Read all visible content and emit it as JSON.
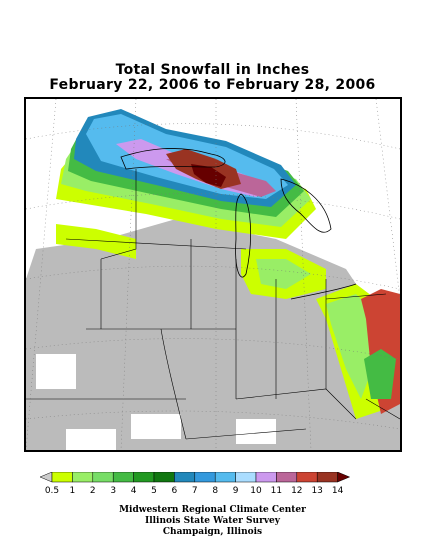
{
  "title": {
    "line1": "Total Snowfall in Inches",
    "line2": "February 22, 2006 to February 28, 2006"
  },
  "legend": {
    "labels": [
      "0.5",
      "1",
      "2",
      "3",
      "4",
      "5",
      "6",
      "7",
      "8",
      "9",
      "10",
      "11",
      "12",
      "13",
      "14"
    ],
    "colors": [
      "#cccccc",
      "#ccff00",
      "#99ee66",
      "#77dd66",
      "#44bb44",
      "#229922",
      "#117711",
      "#2288bb",
      "#3399dd",
      "#55bbee",
      "#aaddff",
      "#cc99ee",
      "#bb6699",
      "#cc4433",
      "#993322",
      "#660000"
    ]
  },
  "credits": {
    "line1": "Midwestern Regional Climate Center",
    "line2": "Illinois State Water Survey",
    "line3": "Champaign, Illinois"
  }
}
